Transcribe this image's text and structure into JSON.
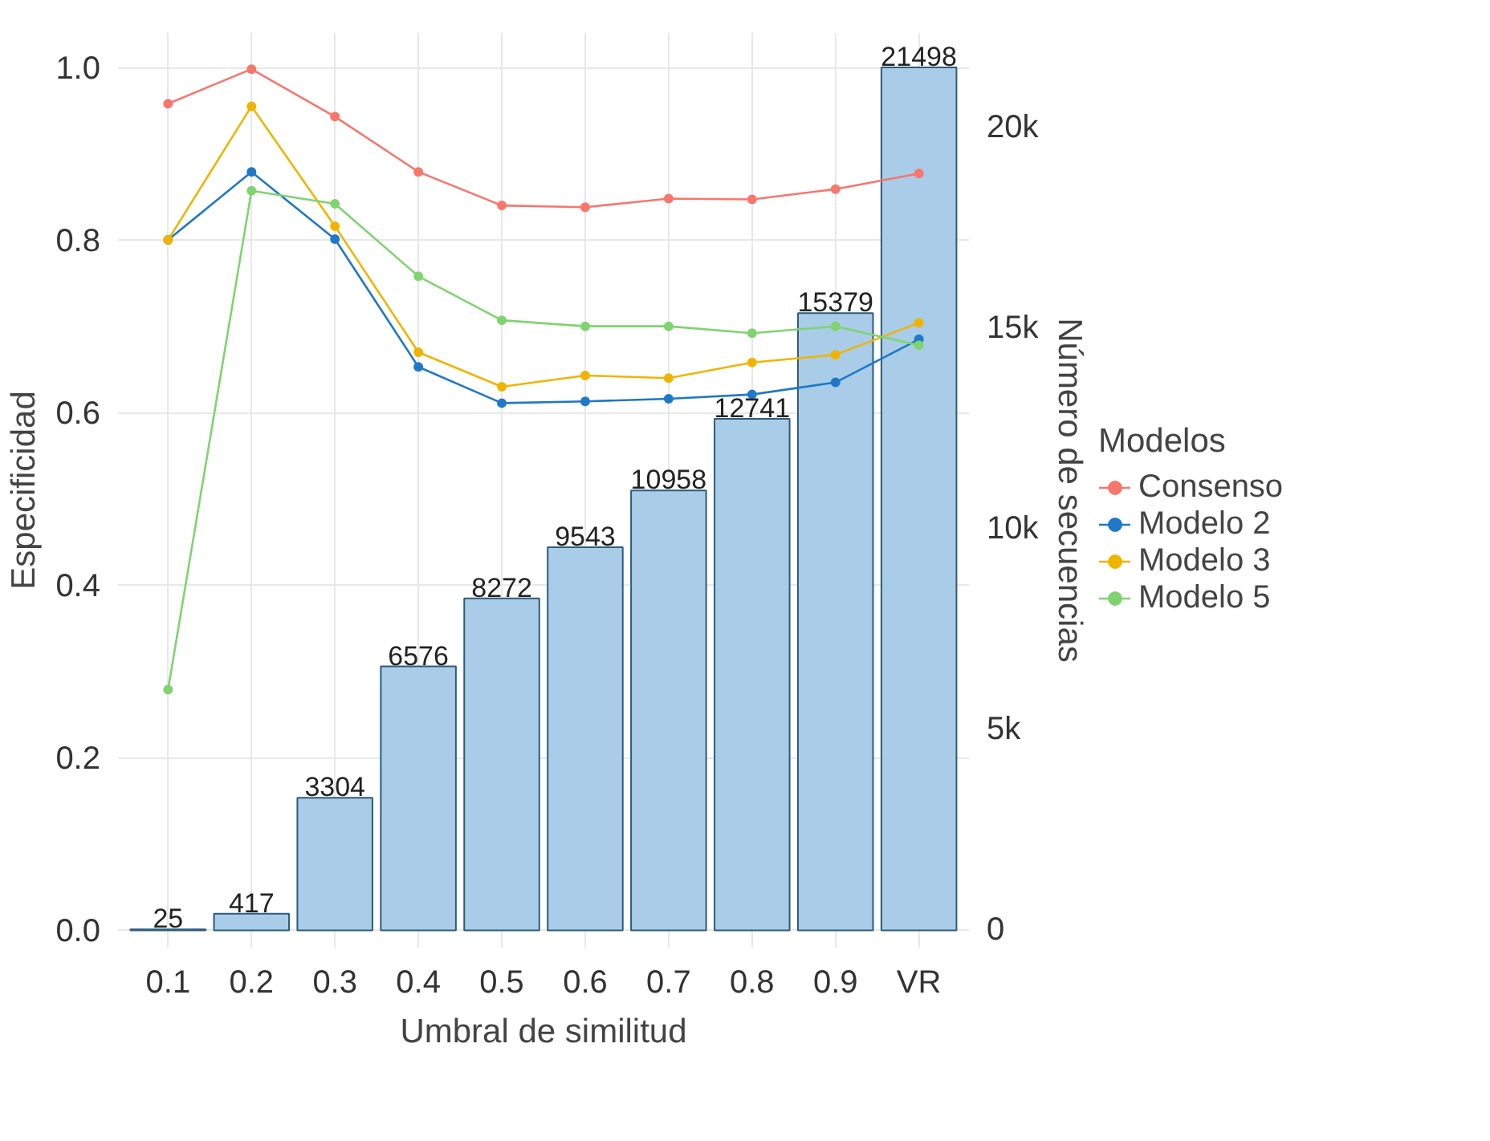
{
  "chart_data": {
    "type": "line",
    "xlabel": "Umbral de similitud",
    "ylabel": "Especificidad",
    "y2label": "Número de secuencias",
    "legend_title": "Modelos",
    "categories": [
      "0.1",
      "0.2",
      "0.3",
      "0.4",
      "0.5",
      "0.6",
      "0.7",
      "0.8",
      "0.9",
      "VR"
    ],
    "series": [
      {
        "type": "bar",
        "axis": "y2",
        "color": "#a9cde8",
        "values": [
          25,
          417,
          3304,
          6576,
          8272,
          9543,
          10958,
          12741,
          15379,
          21498
        ],
        "value_labels": [
          "25",
          "417",
          "3304",
          "6576",
          "8272",
          "9543",
          "10958",
          "12741",
          "15379",
          "21498"
        ]
      },
      {
        "name": "Consenso",
        "color": "#f8766d",
        "values": [
          0.958,
          0.998,
          0.943,
          0.879,
          0.84,
          0.838,
          0.848,
          0.847,
          0.859,
          0.877
        ]
      },
      {
        "name": "Modelo 2",
        "color": "#1f78c8",
        "values": [
          0.8,
          0.879,
          0.801,
          0.653,
          0.611,
          0.613,
          0.616,
          0.621,
          0.635,
          0.685
        ]
      },
      {
        "name": "Modelo 3",
        "color": "#f0b400",
        "values": [
          0.8,
          0.955,
          0.816,
          0.67,
          0.63,
          0.643,
          0.64,
          0.658,
          0.667,
          0.704
        ]
      },
      {
        "name": "Modelo 5",
        "color": "#7fd46f",
        "values": [
          0.279,
          0.857,
          0.842,
          0.758,
          0.707,
          0.7,
          0.7,
          0.692,
          0.7,
          0.678
        ]
      }
    ],
    "ylim": [
      -0.02,
      1.04
    ],
    "yticks": [
      {
        "value": 0,
        "label": "0.0"
      },
      0.2,
      0.4,
      0.6,
      0.8,
      {
        "value": 1.0,
        "label": "1.0"
      }
    ],
    "y2lim": [
      -430,
      22358
    ],
    "y2ticks": [
      0,
      {
        "value": 5000,
        "label": "5k"
      },
      {
        "value": 10000,
        "label": "10k"
      },
      {
        "value": 15000,
        "label": "15k"
      },
      {
        "value": 20000,
        "label": "20k"
      }
    ],
    "grid": true,
    "legend": "right",
    "marker": "circle",
    "line_style": "solid"
  }
}
